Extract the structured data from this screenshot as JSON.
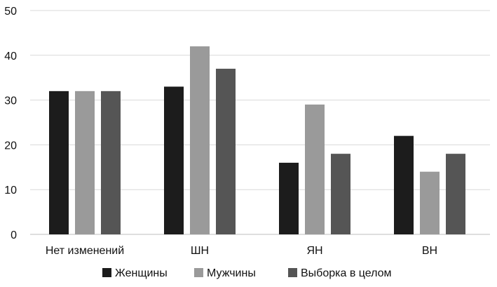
{
  "chart_data": {
    "type": "bar",
    "title": "",
    "xlabel": "",
    "ylabel": "",
    "categories": [
      "Нет изменений",
      "ШН",
      "ЯН",
      "ВН"
    ],
    "series": [
      {
        "name": "Женщины",
        "values": [
          32,
          33,
          16,
          22
        ],
        "color": "#1c1c1c"
      },
      {
        "name": "Мужчины",
        "values": [
          32,
          42,
          29,
          14
        ],
        "color": "#9a9a9a"
      },
      {
        "name": "Выборка в целом",
        "values": [
          32,
          37,
          18,
          18
        ],
        "color": "#555555"
      }
    ],
    "ylim": [
      0,
      50
    ],
    "yticks": [
      "0",
      "10",
      "20",
      "30",
      "40",
      "50"
    ],
    "grid": true,
    "legend_position": "bottom"
  }
}
